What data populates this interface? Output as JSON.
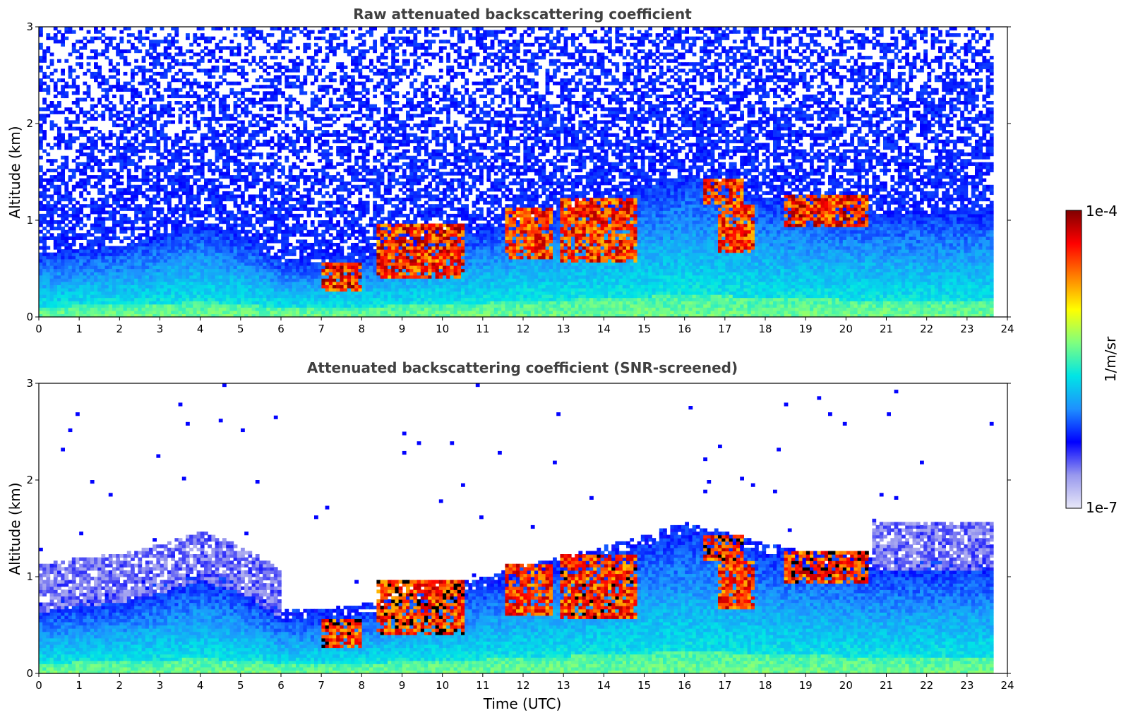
{
  "chart_data": [
    {
      "type": "heatmap",
      "title": "Raw attenuated backscattering coefficient",
      "xlabel": "",
      "ylabel": "Altitude (km)",
      "xlim": [
        0,
        24
      ],
      "ylim": [
        0,
        3
      ],
      "xticks": [
        "0",
        "1",
        "2",
        "3",
        "4",
        "5",
        "6",
        "7",
        "8",
        "9",
        "10",
        "11",
        "12",
        "13",
        "14",
        "15",
        "16",
        "17",
        "18",
        "19",
        "20",
        "21",
        "22",
        "23",
        "24"
      ],
      "yticks": [
        "0",
        "1",
        "2",
        "3"
      ],
      "data_end_hour": 23.65,
      "boundary_layer_top_km": [
        [
          0,
          0.62
        ],
        [
          1,
          0.68
        ],
        [
          2,
          0.72
        ],
        [
          3,
          0.82
        ],
        [
          4,
          0.95
        ],
        [
          5,
          0.8
        ],
        [
          6,
          0.55
        ],
        [
          7,
          0.55
        ],
        [
          8,
          0.6
        ],
        [
          9,
          0.72
        ],
        [
          10,
          0.82
        ],
        [
          11,
          0.88
        ],
        [
          12,
          1.0
        ],
        [
          13,
          1.1
        ],
        [
          14,
          1.2
        ],
        [
          15,
          1.32
        ],
        [
          16,
          1.45
        ],
        [
          17,
          1.35
        ],
        [
          18,
          1.22
        ],
        [
          19,
          1.15
        ],
        [
          20,
          1.1
        ],
        [
          21,
          1.05
        ],
        [
          22,
          1.05
        ],
        [
          23,
          1.05
        ],
        [
          23.65,
          1.05
        ]
      ],
      "cloud_regions": [
        {
          "t0": 6.95,
          "t1": 7.95,
          "z0": 0.25,
          "z1": 0.55,
          "level": 1.0
        },
        {
          "t0": 8.3,
          "t1": 10.5,
          "z0": 0.4,
          "z1": 0.95,
          "level": 0.95
        },
        {
          "t0": 11.5,
          "t1": 12.7,
          "z0": 0.6,
          "z1": 1.1,
          "level": 0.85
        },
        {
          "t0": 12.9,
          "t1": 14.75,
          "z0": 0.55,
          "z1": 1.2,
          "level": 0.9
        },
        {
          "t0": 16.4,
          "t1": 17.4,
          "z0": 1.15,
          "z1": 1.4,
          "level": 0.95
        },
        {
          "t0": 16.8,
          "t1": 17.7,
          "z0": 0.65,
          "z1": 1.15,
          "level": 0.85
        },
        {
          "t0": 18.4,
          "t1": 20.55,
          "z0": 0.92,
          "z1": 1.25,
          "level": 1.0
        }
      ]
    },
    {
      "type": "heatmap",
      "title": "Attenuated backscattering coefficient (SNR-screened)",
      "xlabel": "Time (UTC)",
      "ylabel": "Altitude (km)",
      "xlim": [
        0,
        24
      ],
      "ylim": [
        0,
        3
      ],
      "xticks": [
        "0",
        "1",
        "2",
        "3",
        "4",
        "5",
        "6",
        "7",
        "8",
        "9",
        "10",
        "11",
        "12",
        "13",
        "14",
        "15",
        "16",
        "17",
        "18",
        "19",
        "20",
        "21",
        "22",
        "23",
        "24"
      ],
      "yticks": [
        "0",
        "1",
        "2",
        "3"
      ],
      "colorbar": {
        "label": "1/m/sr",
        "min_label": "1e-7",
        "max_label": "1e-4",
        "scale": "log",
        "colors": [
          "#e8e8f8",
          "#9898ee",
          "#0000ff",
          "#1e90ff",
          "#00e5e5",
          "#7fff7f",
          "#ffff00",
          "#ff8000",
          "#ff0000",
          "#800000"
        ]
      }
    }
  ]
}
